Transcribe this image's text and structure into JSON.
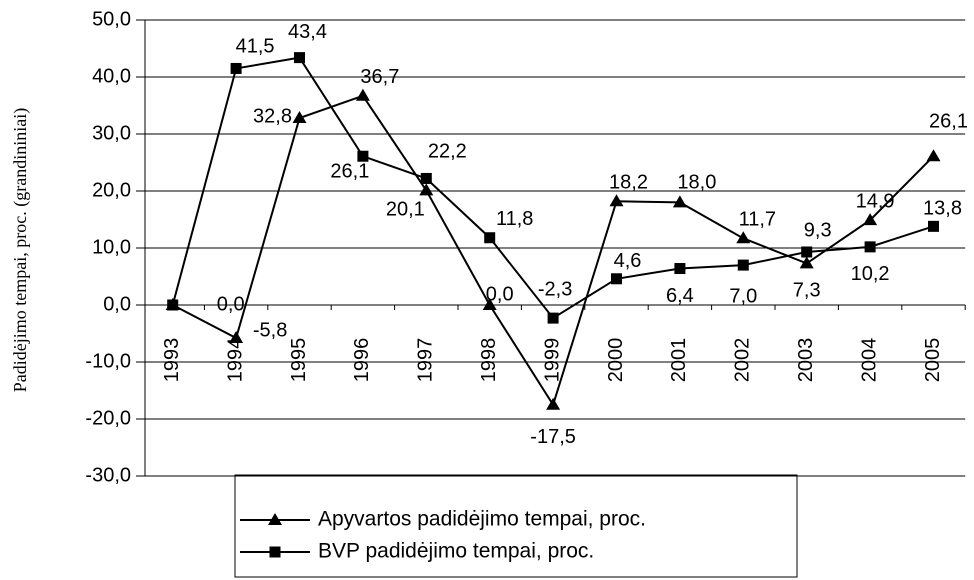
{
  "chart_data": {
    "type": "line",
    "y_label": "Padidėjimo tempai, proc. (grandininiai)",
    "categories": [
      "1993",
      "1994",
      "1995",
      "1996",
      "1997",
      "1998",
      "1999",
      "2000",
      "2001",
      "2002",
      "2003",
      "2004",
      "2005"
    ],
    "series": [
      {
        "name": "Apyvartos padidėjimo tempai, proc.",
        "color": "#000000",
        "marker": "triangle",
        "values": [
          0.0,
          -5.8,
          32.8,
          36.7,
          20.1,
          0.0,
          -17.5,
          18.2,
          18.0,
          11.7,
          7.3,
          14.9,
          26.1
        ],
        "value_labels": [
          null,
          "-5,8",
          "32,8",
          "36,7",
          "20,1",
          "0,0",
          "-17,5",
          "18,2",
          "18,0",
          "11,7",
          "7,3",
          "14,9",
          "26,1"
        ]
      },
      {
        "name": "BVP padidėjimo tempai, proc.",
        "color": "#000000",
        "marker": "square",
        "values": [
          0.0,
          41.5,
          43.4,
          26.1,
          22.2,
          11.8,
          -2.3,
          4.6,
          6.4,
          7.0,
          9.3,
          10.2,
          13.8
        ],
        "value_labels": [
          "0,0",
          "41,5",
          "43,4",
          "26,1",
          "22,2",
          "11,8",
          "-2,3",
          "4,6",
          "6,4",
          "7,0",
          "9,3",
          "10,2",
          "13,8"
        ]
      }
    ],
    "ylim": [
      -30,
      50
    ],
    "yticks": [
      {
        "value": -30,
        "label": "-30,0"
      },
      {
        "value": -20,
        "label": "-20,0"
      },
      {
        "value": -10,
        "label": "-10,0"
      },
      {
        "value": 0,
        "label": "0,0"
      },
      {
        "value": 10,
        "label": "10,0"
      },
      {
        "value": 20,
        "label": "20,0"
      },
      {
        "value": 30,
        "label": "30,0"
      },
      {
        "value": 40,
        "label": "40,0"
      },
      {
        "value": 50,
        "label": "50,0"
      }
    ],
    "grid": true,
    "legend": "bottom"
  }
}
